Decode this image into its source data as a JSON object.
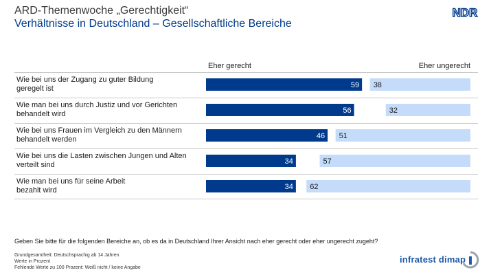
{
  "header": {
    "title": "ARD-Themenwoche „Gerechtigkeit“",
    "subtitle": "Verhältnisse in Deutschland – Gesellschaftliche Bereiche",
    "logo_text": "NDR"
  },
  "chart_data": {
    "type": "bar",
    "orientation": "horizontal",
    "legend": {
      "left_label": "Eher gerecht",
      "right_label": "Eher ungerecht"
    },
    "categories": [
      "Wie bei uns der Zugang zu guter Bildung\ngeregelt ist",
      "Wie man bei uns durch Justiz und vor Gerichten\nbehandelt wird",
      "Wie bei uns Frauen im Vergleich zu den Männern\nbehandelt werden",
      "Wie bei uns die Lasten zwischen Jungen und Alten\nverteilt sind",
      "Wie man bei uns für seine Arbeit\nbezahlt wird"
    ],
    "series": [
      {
        "name": "Eher gerecht",
        "values": [
          59,
          56,
          46,
          34,
          34
        ],
        "color": "#003a8c"
      },
      {
        "name": "Eher ungerecht",
        "values": [
          38,
          32,
          51,
          57,
          62
        ],
        "color": "#c4dcfa"
      }
    ],
    "xlim": [
      0,
      100
    ]
  },
  "question": "Geben Sie bitte für die folgenden Bereiche an, ob es da in Deutschland Ihrer Ansicht nach eher gerecht oder eher ungerecht zugeht?",
  "footnotes": [
    "Grundgesamtheit:  Deutschsprachig ab 14 Jahren",
    "Werte in Prozent",
    "Fehlende Werte zu 100 Prozent: Weiß nicht / keine Angabe"
  ],
  "brand": {
    "name": "infratest dimap"
  }
}
